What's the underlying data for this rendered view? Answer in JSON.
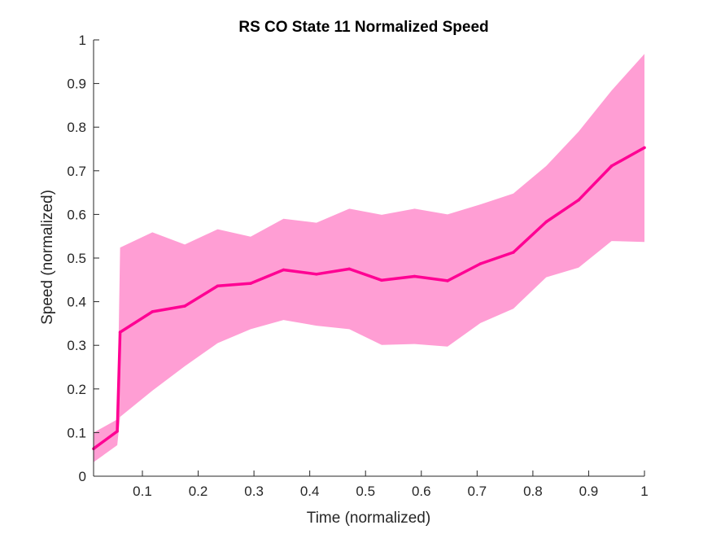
{
  "chart_data": {
    "type": "line",
    "title": "RS  CO State 11 Normalized Speed",
    "xlabel": "Time (normalized)",
    "ylabel": "Speed (normalized)",
    "xlim": [
      0.0125,
      1.0
    ],
    "ylim": [
      0,
      1
    ],
    "xticks": [
      0.1,
      0.2,
      0.3,
      0.4,
      0.5,
      0.6,
      0.7,
      0.8,
      0.9,
      1
    ],
    "xtick_labels": [
      "0.1",
      "0.2",
      "0.3",
      "0.4",
      "0.5",
      "0.6",
      "0.7",
      "0.8",
      "0.9",
      "1"
    ],
    "yticks": [
      0,
      0.1,
      0.2,
      0.3,
      0.4,
      0.5,
      0.6,
      0.7,
      0.8,
      0.9,
      1
    ],
    "ytick_labels": [
      "0",
      "0.1",
      "0.2",
      "0.3",
      "0.4",
      "0.5",
      "0.6",
      "0.7",
      "0.8",
      "0.9",
      "1"
    ],
    "grid": false,
    "colors": {
      "line": "#ff0093",
      "band": "#ff9ed4",
      "axis": "#262626"
    },
    "series": [
      {
        "x": [
          0.0125,
          0.055,
          0.06,
          0.118,
          0.176,
          0.235,
          0.294,
          0.353,
          0.412,
          0.471,
          0.529,
          0.588,
          0.647,
          0.706,
          0.765,
          0.824,
          0.882,
          0.941,
          1.0
        ],
        "y": [
          0.063,
          0.103,
          0.33,
          0.377,
          0.39,
          0.436,
          0.442,
          0.473,
          0.463,
          0.475,
          0.449,
          0.458,
          0.448,
          0.487,
          0.513,
          0.583,
          0.633,
          0.711,
          0.753
        ],
        "upper": [
          0.1,
          0.13,
          0.524,
          0.559,
          0.531,
          0.566,
          0.549,
          0.59,
          0.581,
          0.613,
          0.599,
          0.613,
          0.6,
          0.623,
          0.648,
          0.711,
          0.79,
          0.884,
          0.968
        ],
        "lower": [
          0.032,
          0.071,
          0.136,
          0.196,
          0.252,
          0.305,
          0.337,
          0.358,
          0.345,
          0.337,
          0.301,
          0.303,
          0.297,
          0.351,
          0.384,
          0.456,
          0.478,
          0.539,
          0.537
        ]
      }
    ]
  }
}
